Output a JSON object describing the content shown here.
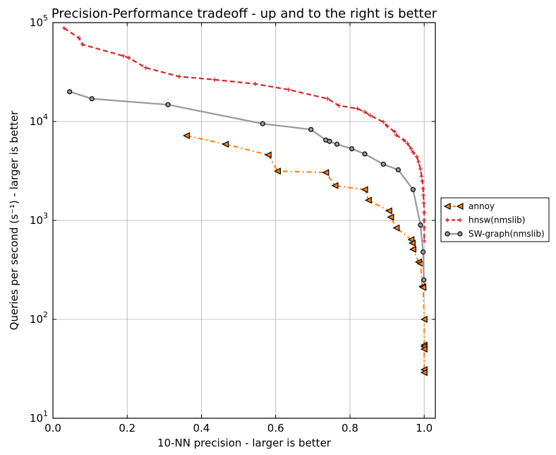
{
  "chart_data": {
    "type": "line",
    "title": "Precision-Performance tradeoff - up and to the right is better",
    "xlabel": "10-NN precision - larger is better",
    "ylabel": "Queries per second (s⁻¹) - larger is better",
    "y_scale": "log",
    "xlim": [
      0.0,
      1.03
    ],
    "ylim": [
      10,
      100000
    ],
    "grid": true,
    "legend_position": "right",
    "x_ticks": [
      {
        "value": 0.0,
        "label": "0.0"
      },
      {
        "value": 0.2,
        "label": "0.2"
      },
      {
        "value": 0.4,
        "label": "0.4"
      },
      {
        "value": 0.6,
        "label": "0.6"
      },
      {
        "value": 0.8,
        "label": "0.8"
      },
      {
        "value": 1.0,
        "label": "1.0"
      }
    ],
    "y_ticks": [
      {
        "value": 10,
        "base": "10",
        "exp": "1"
      },
      {
        "value": 100,
        "base": "10",
        "exp": "2"
      },
      {
        "value": 1000,
        "base": "10",
        "exp": "3"
      },
      {
        "value": 10000,
        "base": "10",
        "exp": "4"
      },
      {
        "value": 100000,
        "base": "10",
        "exp": "5"
      }
    ],
    "series": [
      {
        "name": "annoy",
        "color": "#ff7f0e",
        "line_style": "dashdot",
        "marker": "triangle-left",
        "points": [
          [
            0.36,
            7200
          ],
          [
            0.465,
            5900
          ],
          [
            0.58,
            4600
          ],
          [
            0.605,
            3150
          ],
          [
            0.735,
            3050
          ],
          [
            0.76,
            2250
          ],
          [
            0.84,
            2050
          ],
          [
            0.85,
            1600
          ],
          [
            0.905,
            1250
          ],
          [
            0.91,
            1080
          ],
          [
            0.925,
            840
          ],
          [
            0.965,
            640
          ],
          [
            0.968,
            590
          ],
          [
            0.97,
            510
          ],
          [
            0.985,
            380
          ],
          [
            0.99,
            365
          ],
          [
            0.995,
            215
          ],
          [
            0.997,
            210
          ],
          [
            1.0,
            100
          ],
          [
            1.0,
            55
          ],
          [
            1.0,
            53
          ],
          [
            1.0,
            50
          ],
          [
            1.0,
            31
          ],
          [
            1.0,
            29
          ]
        ]
      },
      {
        "name": "hnsw(nmslib)",
        "color": "#d62728",
        "line_style": "dashed",
        "marker": "plus",
        "points": [
          [
            0.03,
            88000
          ],
          [
            0.07,
            70000
          ],
          [
            0.08,
            60000
          ],
          [
            0.19,
            46000
          ],
          [
            0.205,
            44000
          ],
          [
            0.25,
            35000
          ],
          [
            0.34,
            28500
          ],
          [
            0.435,
            26500
          ],
          [
            0.545,
            24000
          ],
          [
            0.635,
            21000
          ],
          [
            0.74,
            17000
          ],
          [
            0.77,
            14500
          ],
          [
            0.82,
            13500
          ],
          [
            0.84,
            12500
          ],
          [
            0.855,
            11500
          ],
          [
            0.89,
            9900
          ],
          [
            0.9,
            9000
          ],
          [
            0.92,
            7900
          ],
          [
            0.925,
            7300
          ],
          [
            0.945,
            6500
          ],
          [
            0.955,
            6000
          ],
          [
            0.965,
            5300
          ],
          [
            0.97,
            4900
          ],
          [
            0.98,
            4400
          ],
          [
            0.985,
            3900
          ],
          [
            0.99,
            3300
          ],
          [
            0.993,
            2800
          ],
          [
            0.995,
            2500
          ],
          [
            0.997,
            2100
          ],
          [
            0.998,
            1800
          ],
          [
            0.999,
            1500
          ],
          [
            1.0,
            1200
          ],
          [
            1.0,
            1000
          ],
          [
            1.0,
            850
          ],
          [
            1.0,
            620
          ]
        ]
      },
      {
        "name": "SW-graph(nmslib)",
        "color": "#999999",
        "line_style": "solid",
        "marker": "circle",
        "points": [
          [
            0.045,
            20000
          ],
          [
            0.105,
            17000
          ],
          [
            0.31,
            14800
          ],
          [
            0.565,
            9500
          ],
          [
            0.695,
            8300
          ],
          [
            0.735,
            6500
          ],
          [
            0.745,
            6300
          ],
          [
            0.765,
            5900
          ],
          [
            0.805,
            5300
          ],
          [
            0.84,
            4700
          ],
          [
            0.89,
            3700
          ],
          [
            0.93,
            3250
          ],
          [
            0.97,
            2050
          ],
          [
            0.99,
            900
          ],
          [
            0.997,
            480
          ],
          [
            0.999,
            250
          ]
        ]
      }
    ]
  }
}
